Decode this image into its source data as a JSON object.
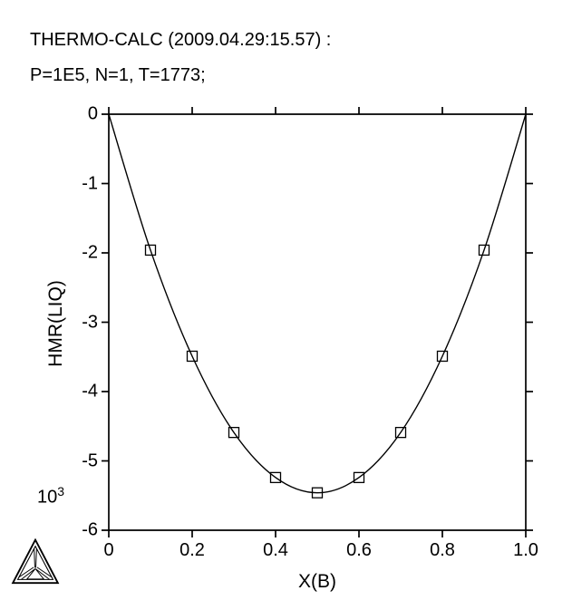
{
  "header": {
    "title": "THERMO-CALC (2009.04.29:15.57) :",
    "subtitle": "P=1E5, N=1, T=1773;"
  },
  "chart_data": {
    "type": "line",
    "title": "THERMO-CALC (2009.04.29:15.57) :",
    "subtitle": "P=1E5, N=1, T=1773;",
    "xlabel": "X(B)",
    "ylabel": "HMR(LIQ)",
    "y_scale_base": "10",
    "y_scale_exponent": "3",
    "xlim": [
      0,
      1.0
    ],
    "ylim": [
      -6,
      0
    ],
    "x_ticks": [
      0,
      0.2,
      0.4,
      0.6,
      0.8,
      1.0
    ],
    "x_tick_labels": [
      "0",
      "0.2",
      "0.4",
      "0.6",
      "0.8",
      "1.0"
    ],
    "y_ticks": [
      0,
      -1,
      -2,
      -3,
      -4,
      -5,
      -6
    ],
    "y_tick_labels": [
      "0",
      "-1",
      "-2",
      "-3",
      "-4",
      "-5",
      "-6"
    ],
    "grid": false,
    "legend": "none",
    "series": [
      {
        "name": "HMR(LIQ)",
        "marker": "open-square",
        "x": [
          0,
          0.1,
          0.2,
          0.3,
          0.4,
          0.5,
          0.6,
          0.7,
          0.8,
          0.9,
          1.0
        ],
        "y": [
          0,
          -1.96,
          -3.49,
          -4.59,
          -5.24,
          -5.46,
          -5.24,
          -4.59,
          -3.49,
          -1.96,
          0
        ],
        "marker_x": [
          0.1,
          0.2,
          0.3,
          0.4,
          0.5,
          0.6,
          0.7,
          0.8,
          0.9
        ]
      }
    ],
    "line_color": "#000000",
    "axis_color": "#000000"
  },
  "logo": {
    "name": "thermo-calc-tetrahedron-logo"
  }
}
